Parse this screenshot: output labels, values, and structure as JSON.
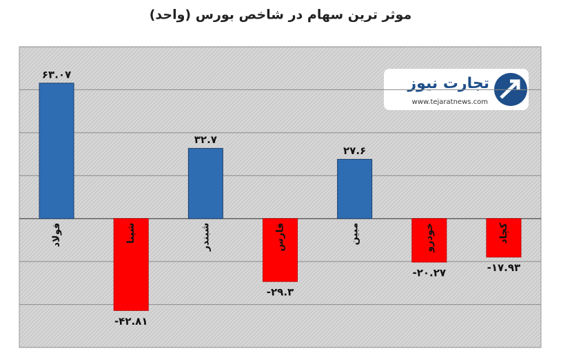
{
  "chart_data": {
    "type": "bar",
    "title": "موثر ترین سهام در شاخص بورس (واحد)",
    "categories": [
      "فولاد",
      "شپنا",
      "شبندر",
      "فارس",
      "مبین",
      "خودرو",
      "کچاد"
    ],
    "values": [
      63.07,
      -42.81,
      32.7,
      -29.3,
      27.6,
      -20.27,
      -17.93
    ],
    "value_labels": [
      "۶۳.۰۷",
      "-۴۲.۸۱",
      "۳۲.۷",
      "-۲۹.۳",
      "۲۷.۶",
      "-۲۰.۲۷",
      "-۱۷.۹۳"
    ],
    "positive_color": "#2f6db3",
    "negative_color": "#ff0000",
    "ylim": [
      -60,
      80
    ],
    "yticks": [
      -60,
      -40,
      -20,
      0,
      20,
      40,
      60,
      80
    ],
    "grid": true,
    "logo": {
      "name": "تجارت نیوز",
      "url": "www.tejaratnews.com"
    }
  }
}
